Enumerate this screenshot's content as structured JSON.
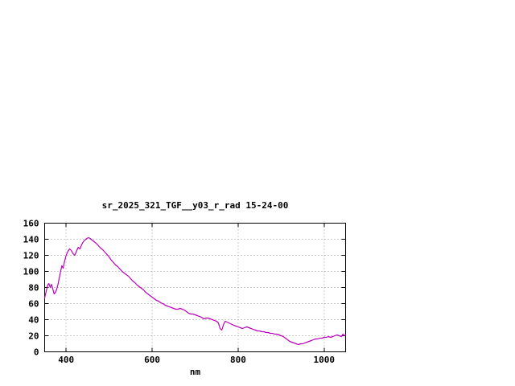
{
  "window": {
    "background": "#ffffff"
  },
  "chart_data": {
    "type": "line",
    "title": "sr_2025_321_TGF__y03_r_rad 15-24-00",
    "xlabel": "nm",
    "ylabel": "",
    "xlim": [
      350,
      1050
    ],
    "ylim": [
      0,
      160
    ],
    "x_ticks": [
      400,
      600,
      800,
      1000
    ],
    "y_ticks": [
      0,
      20,
      40,
      60,
      80,
      100,
      120,
      140,
      160
    ],
    "grid": true,
    "legend": "none",
    "line_color": "#bb00bb",
    "points": [
      [
        350,
        67
      ],
      [
        354,
        76
      ],
      [
        357,
        83
      ],
      [
        360,
        85
      ],
      [
        363,
        80
      ],
      [
        366,
        84
      ],
      [
        369,
        78
      ],
      [
        372,
        72
      ],
      [
        375,
        74
      ],
      [
        378,
        78
      ],
      [
        381,
        84
      ],
      [
        384,
        92
      ],
      [
        387,
        100
      ],
      [
        390,
        107
      ],
      [
        393,
        104
      ],
      [
        396,
        112
      ],
      [
        400,
        120
      ],
      [
        404,
        125
      ],
      [
        408,
        128
      ],
      [
        412,
        126
      ],
      [
        416,
        122
      ],
      [
        420,
        120
      ],
      [
        424,
        125
      ],
      [
        428,
        130
      ],
      [
        432,
        128
      ],
      [
        436,
        133
      ],
      [
        440,
        137
      ],
      [
        444,
        139
      ],
      [
        448,
        141
      ],
      [
        452,
        142
      ],
      [
        456,
        141
      ],
      [
        460,
        139
      ],
      [
        465,
        137
      ],
      [
        470,
        135
      ],
      [
        475,
        132
      ],
      [
        480,
        129
      ],
      [
        485,
        127
      ],
      [
        490,
        124
      ],
      [
        495,
        121
      ],
      [
        500,
        118
      ],
      [
        505,
        114
      ],
      [
        510,
        111
      ],
      [
        515,
        108
      ],
      [
        520,
        106
      ],
      [
        525,
        103
      ],
      [
        530,
        100
      ],
      [
        535,
        98
      ],
      [
        540,
        96
      ],
      [
        545,
        94
      ],
      [
        550,
        91
      ],
      [
        555,
        88
      ],
      [
        560,
        86
      ],
      [
        565,
        83
      ],
      [
        570,
        81
      ],
      [
        575,
        79
      ],
      [
        580,
        77
      ],
      [
        585,
        74
      ],
      [
        590,
        72
      ],
      [
        595,
        70
      ],
      [
        600,
        68
      ],
      [
        605,
        66
      ],
      [
        610,
        64
      ],
      [
        615,
        63
      ],
      [
        620,
        61
      ],
      [
        625,
        60
      ],
      [
        630,
        58
      ],
      [
        635,
        57
      ],
      [
        640,
        56
      ],
      [
        645,
        55
      ],
      [
        650,
        54
      ],
      [
        655,
        53
      ],
      [
        660,
        53
      ],
      [
        665,
        54
      ],
      [
        670,
        53
      ],
      [
        675,
        52
      ],
      [
        680,
        50
      ],
      [
        685,
        48
      ],
      [
        690,
        47
      ],
      [
        695,
        47
      ],
      [
        700,
        46
      ],
      [
        705,
        45
      ],
      [
        710,
        44
      ],
      [
        715,
        43
      ],
      [
        720,
        41
      ],
      [
        725,
        42
      ],
      [
        730,
        42
      ],
      [
        735,
        41
      ],
      [
        740,
        40
      ],
      [
        745,
        39
      ],
      [
        750,
        38
      ],
      [
        754,
        36
      ],
      [
        758,
        29
      ],
      [
        762,
        27
      ],
      [
        766,
        34
      ],
      [
        770,
        38
      ],
      [
        774,
        37
      ],
      [
        778,
        36
      ],
      [
        782,
        35
      ],
      [
        786,
        34
      ],
      [
        790,
        33
      ],
      [
        795,
        32
      ],
      [
        800,
        31
      ],
      [
        805,
        30
      ],
      [
        810,
        29
      ],
      [
        815,
        30
      ],
      [
        820,
        31
      ],
      [
        825,
        30
      ],
      [
        830,
        29
      ],
      [
        835,
        28
      ],
      [
        840,
        27
      ],
      [
        845,
        26
      ],
      [
        850,
        26
      ],
      [
        855,
        25
      ],
      [
        860,
        25
      ],
      [
        865,
        24
      ],
      [
        870,
        24
      ],
      [
        875,
        23
      ],
      [
        880,
        23
      ],
      [
        885,
        22
      ],
      [
        890,
        22
      ],
      [
        895,
        21
      ],
      [
        900,
        20
      ],
      [
        905,
        19
      ],
      [
        910,
        17
      ],
      [
        915,
        15
      ],
      [
        920,
        13
      ],
      [
        925,
        12
      ],
      [
        930,
        11
      ],
      [
        935,
        10
      ],
      [
        940,
        9
      ],
      [
        945,
        10
      ],
      [
        950,
        10
      ],
      [
        955,
        11
      ],
      [
        960,
        12
      ],
      [
        965,
        13
      ],
      [
        970,
        14
      ],
      [
        975,
        15
      ],
      [
        980,
        16
      ],
      [
        985,
        16
      ],
      [
        990,
        17
      ],
      [
        995,
        17
      ],
      [
        1000,
        18
      ],
      [
        1005,
        18
      ],
      [
        1010,
        19
      ],
      [
        1015,
        18
      ],
      [
        1020,
        19
      ],
      [
        1025,
        20
      ],
      [
        1030,
        21
      ],
      [
        1035,
        20
      ],
      [
        1040,
        19
      ],
      [
        1044,
        22
      ],
      [
        1048,
        20
      ],
      [
        1050,
        21
      ]
    ]
  }
}
